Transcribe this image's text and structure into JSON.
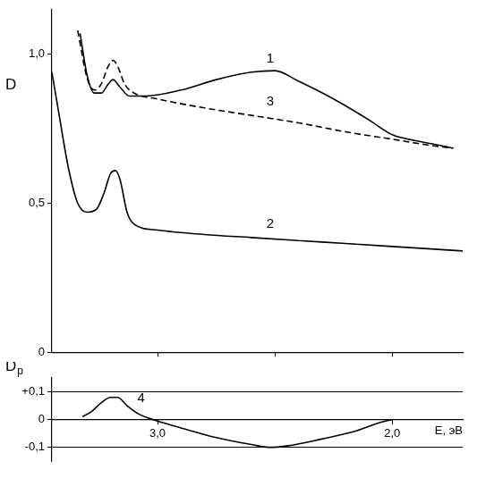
{
  "chart_data": [
    {
      "type": "line",
      "ylabel": "D",
      "xlim": [
        3.45,
        1.7
      ],
      "xticks": [
        3,
        2.5,
        2
      ],
      "ylim": [
        0,
        1.15
      ],
      "yticks": [
        0,
        {
          "value": 0.5,
          "label": "0,5"
        },
        {
          "value": 1,
          "label": "1,0"
        }
      ],
      "tick_labels": "y",
      "grid": false,
      "series": [
        {
          "color": "#000000",
          "line_style": "solid",
          "x": [
            3.33,
            3.3,
            3.27,
            3.24,
            3.21,
            3.19,
            3.16,
            3.12,
            3.05,
            2.9,
            2.75,
            2.6,
            2.5,
            2.4,
            2.25,
            2.1,
            2.0,
            1.9,
            1.8,
            1.74
          ],
          "values": [
            1.07,
            0.93,
            0.87,
            0.87,
            0.9,
            0.915,
            0.89,
            0.86,
            0.86,
            0.88,
            0.915,
            0.94,
            0.945,
            0.91,
            0.85,
            0.78,
            0.73,
            0.71,
            0.695,
            0.685
          ]
        },
        {
          "color": "#000000",
          "line_style": "solid",
          "x": [
            3.45,
            3.42,
            3.38,
            3.34,
            3.3,
            3.26,
            3.23,
            3.2,
            3.18,
            3.16,
            3.13,
            3.1,
            3.0,
            2.8,
            2.6,
            2.4,
            2.2,
            2.0,
            1.7
          ],
          "values": [
            0.94,
            0.8,
            0.62,
            0.5,
            0.47,
            0.48,
            0.53,
            0.6,
            0.61,
            0.58,
            0.47,
            0.43,
            0.41,
            0.395,
            0.385,
            0.375,
            0.365,
            0.355,
            0.34
          ]
        },
        {
          "color": "#000000",
          "line_style": "dashed",
          "x": [
            3.34,
            3.3,
            3.27,
            3.24,
            3.21,
            3.19,
            3.17,
            3.14,
            3.1,
            3.0,
            2.8,
            2.6,
            2.4,
            2.2,
            2.0,
            1.8,
            1.74
          ],
          "values": [
            1.08,
            0.92,
            0.88,
            0.9,
            0.96,
            0.98,
            0.96,
            0.9,
            0.87,
            0.85,
            0.82,
            0.795,
            0.77,
            0.74,
            0.715,
            0.69,
            0.685
          ]
        }
      ],
      "annotations": [
        {
          "text": "1",
          "x": 2.52,
          "y": 0.985
        },
        {
          "text": "3",
          "x": 2.52,
          "y": 0.84
        },
        {
          "text": "2",
          "x": 2.52,
          "y": 0.43
        }
      ]
    },
    {
      "type": "line",
      "ylabel": "Dp",
      "xlabel": "E, эВ",
      "xlim": [
        3.45,
        1.7
      ],
      "xticks": [
        {
          "value": 3,
          "label": "3,0"
        },
        {
          "value": 2,
          "label": "2,0"
        }
      ],
      "ylim": [
        -0.15,
        0.15
      ],
      "yticks": [
        {
          "value": -0.1,
          "label": "-0,1"
        },
        0,
        {
          "value": 0.1,
          "label": "+0,1"
        }
      ],
      "grid": true,
      "series": [
        {
          "color": "#000000",
          "line_style": "solid",
          "x": [
            3.32,
            3.28,
            3.24,
            3.2,
            3.17,
            3.13,
            3.08,
            3.02,
            2.9,
            2.75,
            2.6,
            2.52,
            2.45,
            2.3,
            2.15,
            2.05,
            2.0
          ],
          "values": [
            0.01,
            0.03,
            0.06,
            0.08,
            0.08,
            0.05,
            0.02,
            0.0,
            -0.03,
            -0.065,
            -0.09,
            -0.1,
            -0.095,
            -0.07,
            -0.04,
            -0.01,
            0.0
          ]
        }
      ],
      "annotations": [
        {
          "text": "4",
          "x": 3.07,
          "y": 0.075
        }
      ]
    }
  ]
}
